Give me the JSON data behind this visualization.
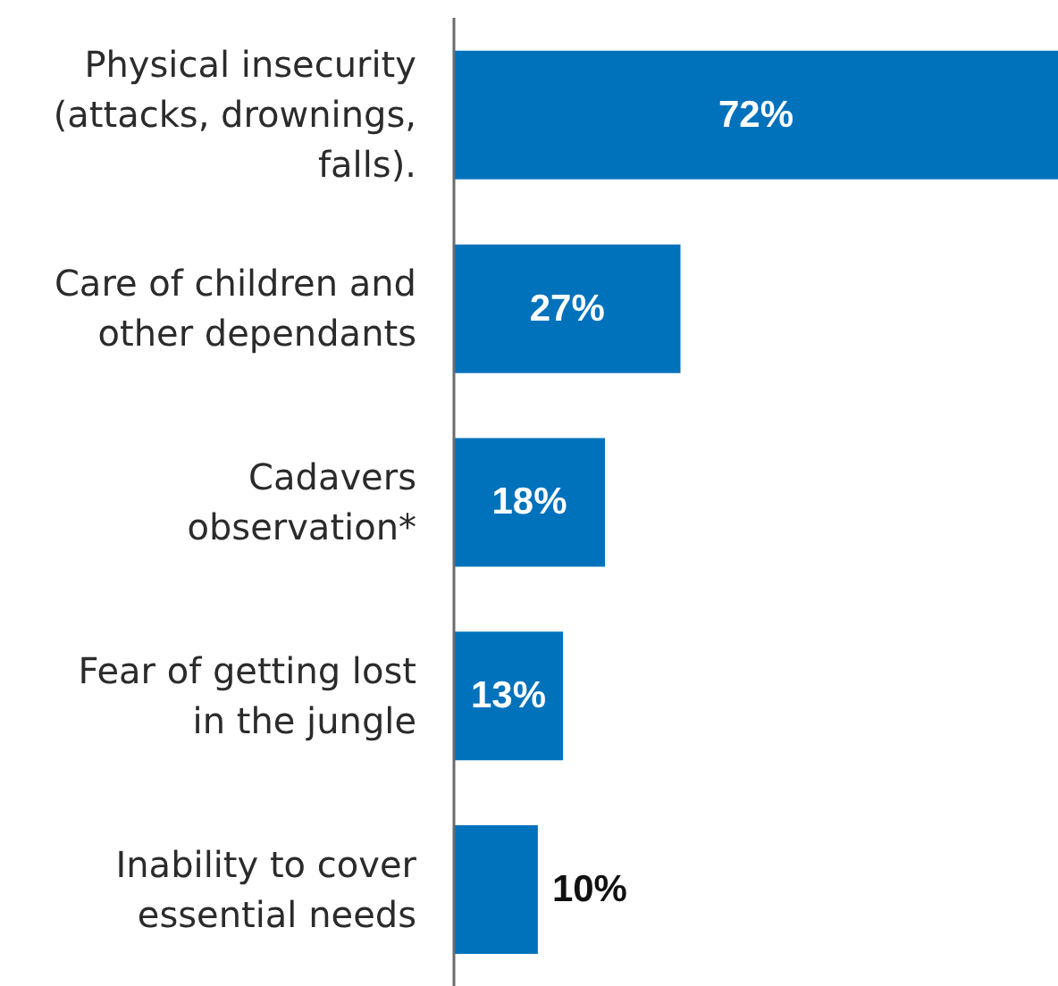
{
  "chart_data": {
    "type": "bar",
    "orientation": "horizontal",
    "categories": [
      "Physical insecurity\n(attacks, drownings,\nfalls).",
      "Care of children and\nother dependants",
      "Cadavers\nobservation*",
      "Fear of getting lost\nin the jungle",
      "Inability to cover\nessential needs"
    ],
    "values": [
      72,
      27,
      18,
      13,
      10
    ],
    "value_labels": [
      "72%",
      "27%",
      "18%",
      "13%",
      "10%"
    ],
    "color": "#0072bc"
  }
}
